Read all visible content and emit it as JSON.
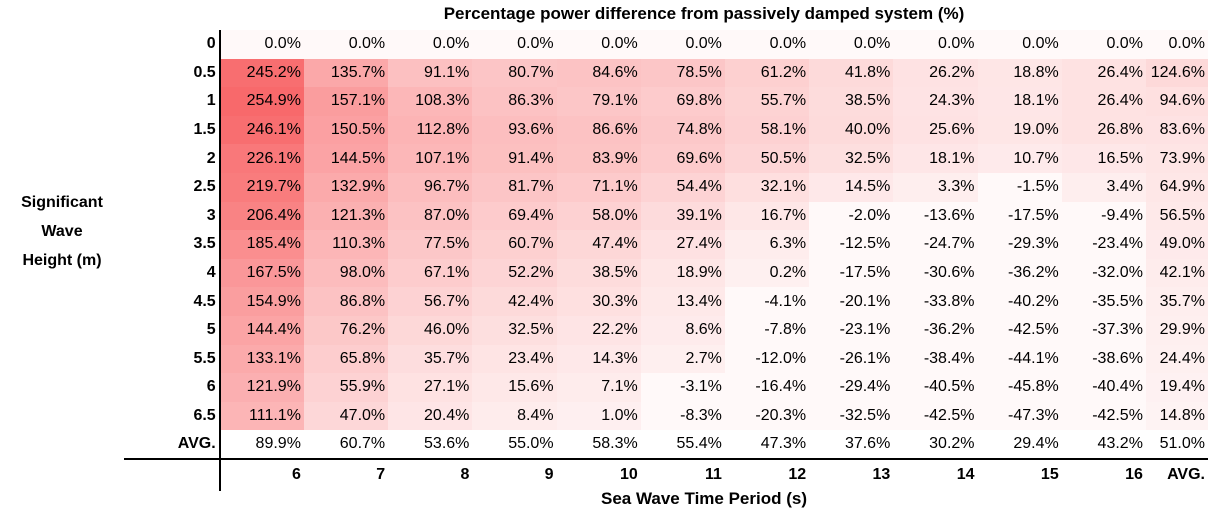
{
  "chart_data": {
    "type": "heatmap",
    "title": "Percentage power difference from passively damped system (%)",
    "ylabel": [
      "Significant",
      "Wave",
      "Height (m)"
    ],
    "xlabel": "Sea Wave Time Period (s)",
    "x_categories": [
      "6",
      "7",
      "8",
      "9",
      "10",
      "11",
      "12",
      "13",
      "14",
      "15",
      "16"
    ],
    "avg_label": "AVG.",
    "y_categories": [
      "0",
      "0.5",
      "1",
      "1.5",
      "2",
      "2.5",
      "3",
      "3.5",
      "4",
      "4.5",
      "5",
      "5.5",
      "6",
      "6.5"
    ],
    "values": [
      [
        0.0,
        0.0,
        0.0,
        0.0,
        0.0,
        0.0,
        0.0,
        0.0,
        0.0,
        0.0,
        0.0
      ],
      [
        245.2,
        135.7,
        91.1,
        80.7,
        84.6,
        78.5,
        61.2,
        41.8,
        26.2,
        18.8,
        26.4
      ],
      [
        254.9,
        157.1,
        108.3,
        86.3,
        79.1,
        69.8,
        55.7,
        38.5,
        24.3,
        18.1,
        26.4
      ],
      [
        246.1,
        150.5,
        112.8,
        93.6,
        86.6,
        74.8,
        58.1,
        40.0,
        25.6,
        19.0,
        26.8
      ],
      [
        226.1,
        144.5,
        107.1,
        91.4,
        83.9,
        69.6,
        50.5,
        32.5,
        18.1,
        10.7,
        16.5
      ],
      [
        219.7,
        132.9,
        96.7,
        81.7,
        71.1,
        54.4,
        32.1,
        14.5,
        3.3,
        -1.5,
        3.4
      ],
      [
        206.4,
        121.3,
        87.0,
        69.4,
        58.0,
        39.1,
        16.7,
        -2.0,
        -13.6,
        -17.5,
        -9.4
      ],
      [
        185.4,
        110.3,
        77.5,
        60.7,
        47.4,
        27.4,
        6.3,
        -12.5,
        -24.7,
        -29.3,
        -23.4
      ],
      [
        167.5,
        98.0,
        67.1,
        52.2,
        38.5,
        18.9,
        0.2,
        -17.5,
        -30.6,
        -36.2,
        -32.0
      ],
      [
        154.9,
        86.8,
        56.7,
        42.4,
        30.3,
        13.4,
        -4.1,
        -20.1,
        -33.8,
        -40.2,
        -35.5
      ],
      [
        144.4,
        76.2,
        46.0,
        32.5,
        22.2,
        8.6,
        -7.8,
        -23.1,
        -36.2,
        -42.5,
        -37.3
      ],
      [
        133.1,
        65.8,
        35.7,
        23.4,
        14.3,
        2.7,
        -12.0,
        -26.1,
        -38.4,
        -44.1,
        -38.6
      ],
      [
        121.9,
        55.9,
        27.1,
        15.6,
        7.1,
        -3.1,
        -16.4,
        -29.4,
        -40.5,
        -45.8,
        -40.4
      ],
      [
        111.1,
        47.0,
        20.4,
        8.4,
        1.0,
        -8.3,
        -20.3,
        -32.5,
        -42.5,
        -47.3,
        -42.5
      ]
    ],
    "row_avg": [
      0.0,
      124.6,
      94.6,
      83.6,
      73.9,
      64.9,
      56.5,
      49.0,
      42.1,
      35.7,
      29.9,
      24.4,
      19.4,
      14.8
    ],
    "col_avg": [
      89.9,
      60.7,
      53.6,
      55.0,
      58.3,
      55.4,
      47.3,
      37.6,
      30.2,
      29.4,
      43.2
    ],
    "overall_avg": 51.0,
    "colors": {
      "max": "#f8696b",
      "min": "#ffffff"
    }
  }
}
